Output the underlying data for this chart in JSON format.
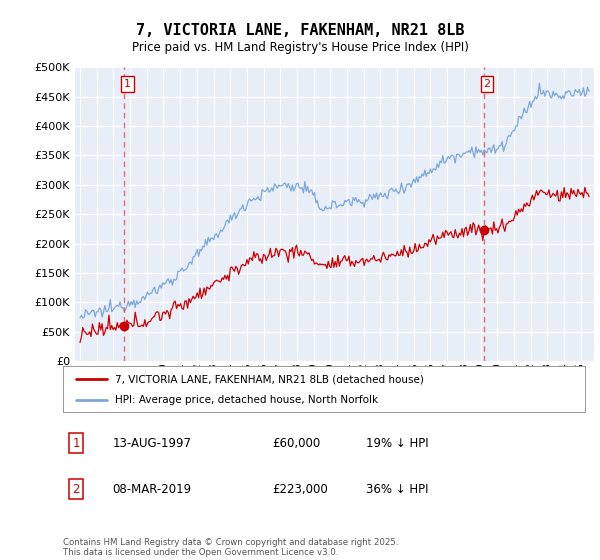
{
  "title": "7, VICTORIA LANE, FAKENHAM, NR21 8LB",
  "subtitle": "Price paid vs. HM Land Registry's House Price Index (HPI)",
  "ylim": [
    0,
    500000
  ],
  "yticks": [
    0,
    50000,
    100000,
    150000,
    200000,
    250000,
    300000,
    350000,
    400000,
    450000,
    500000
  ],
  "bg_color": "#e8eef8",
  "grid_color": "#ffffff",
  "sale1_date": 1997.62,
  "sale1_price": 60000,
  "sale1_label": "1",
  "sale2_date": 2019.18,
  "sale2_price": 223000,
  "sale2_label": "2",
  "legend_line1": "7, VICTORIA LANE, FAKENHAM, NR21 8LB (detached house)",
  "legend_line2": "HPI: Average price, detached house, North Norfolk",
  "table_rows": [
    {
      "num": "1",
      "date": "13-AUG-1997",
      "price": "£60,000",
      "hpi": "19% ↓ HPI"
    },
    {
      "num": "2",
      "date": "08-MAR-2019",
      "price": "£223,000",
      "hpi": "36% ↓ HPI"
    }
  ],
  "footer": "Contains HM Land Registry data © Crown copyright and database right 2025.\nThis data is licensed under the Open Government Licence v3.0.",
  "red_line_color": "#cc0000",
  "blue_line_color": "#7da7d9",
  "dashed_line_color": "#e06060"
}
